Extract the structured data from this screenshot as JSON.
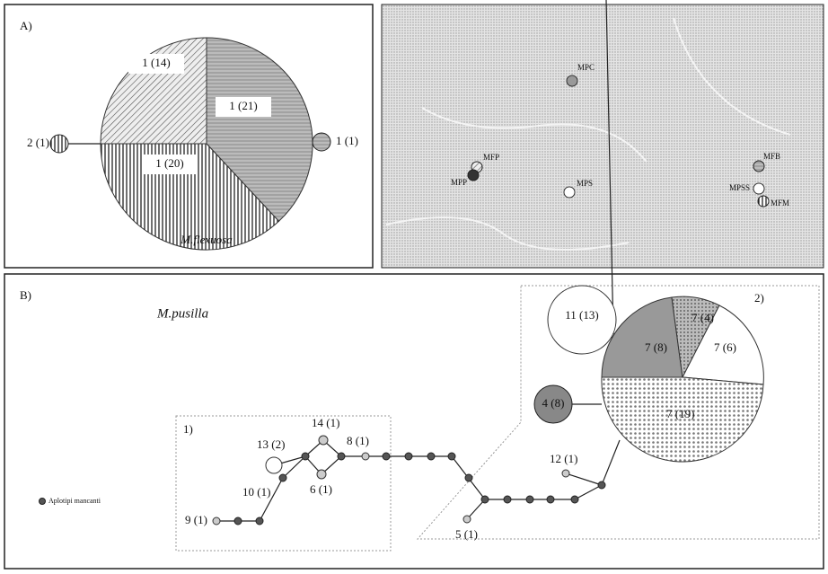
{
  "panel_a": {
    "label": "A)",
    "species": "M.flexuosa",
    "haplotypes": [
      "1 (14)",
      "1 (21)",
      "1 (20)",
      "2 (1)",
      "1 (1)"
    ]
  },
  "map": {
    "sites": [
      "MPC",
      "MFP",
      "MPP",
      "MPS",
      "MFB",
      "MPSS",
      "MFM"
    ]
  },
  "panel_b": {
    "label": "B)",
    "species": "M.pusilla",
    "box_1": "1)",
    "box_2": "2)",
    "legend": "Aplotipi mancanti",
    "pie_labels": [
      "7 (8)",
      "7 (4)",
      "7 (6)",
      "7 (19)"
    ],
    "nodes": [
      "11 (13)",
      "4 (8)",
      "12 (1)",
      "13 (2)",
      "14 (1)",
      "8 (1)",
      "10 (1)",
      "6 (1)",
      "9 (1)",
      "5 (1)"
    ]
  }
}
